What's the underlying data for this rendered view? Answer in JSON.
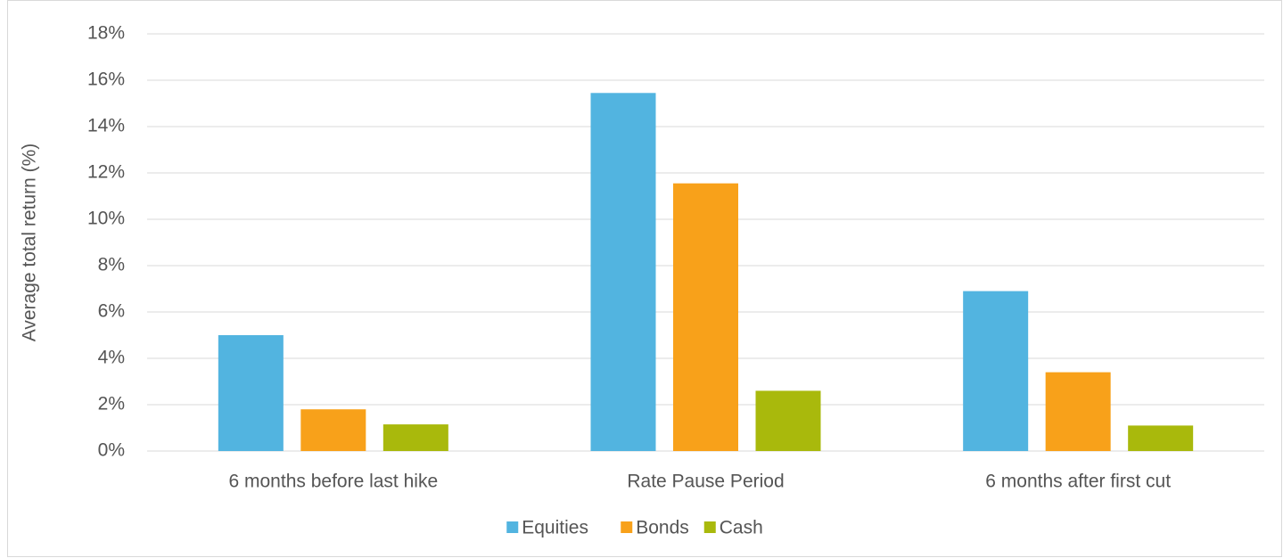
{
  "chart_data": {
    "type": "bar",
    "y_label": "Average total return (%)",
    "categories": [
      "6 months before last hike",
      "Rate Pause Period",
      "6 months after first cut"
    ],
    "series": [
      {
        "name": "Equities",
        "color": "#52b4e0",
        "values": [
          5.0,
          15.45,
          6.9
        ]
      },
      {
        "name": "Bonds",
        "color": "#f8a11a",
        "values": [
          1.8,
          11.55,
          3.4
        ]
      },
      {
        "name": "Cash",
        "color": "#a9b90c",
        "values": [
          1.15,
          2.6,
          1.1
        ]
      }
    ],
    "ylim": [
      0,
      18
    ],
    "yticks": [
      {
        "value": 0,
        "label": "0%"
      },
      {
        "value": 2,
        "label": "2%"
      },
      {
        "value": 4,
        "label": "4%"
      },
      {
        "value": 6,
        "label": "6%"
      },
      {
        "value": 8,
        "label": "8%"
      },
      {
        "value": 10,
        "label": "10%"
      },
      {
        "value": 12,
        "label": "12%"
      },
      {
        "value": 14,
        "label": "14%"
      },
      {
        "value": 16,
        "label": "16%"
      },
      {
        "value": 18,
        "label": "18%"
      }
    ],
    "grid": true,
    "legend": "bottom"
  }
}
